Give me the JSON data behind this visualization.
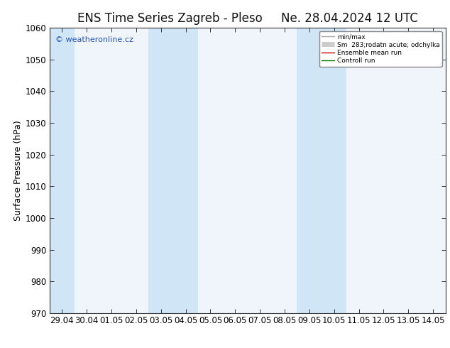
{
  "title": "ENS Time Series Zagreb - Pleso",
  "title2": "Ne. 28.04.2024 12 UTC",
  "xlabel_ticks": [
    "29.04",
    "30.04",
    "01.05",
    "02.05",
    "03.05",
    "04.05",
    "05.05",
    "06.05",
    "07.05",
    "08.05",
    "09.05",
    "10.05",
    "11.05",
    "12.05",
    "13.05",
    "14.05"
  ],
  "ylabel": "Surface Pressure (hPa)",
  "ylim": [
    970,
    1060
  ],
  "yticks": [
    970,
    980,
    990,
    1000,
    1010,
    1020,
    1030,
    1040,
    1050,
    1060
  ],
  "background_color": "#ffffff",
  "plot_bg_color": "#f0f5fb",
  "shaded_columns": [
    0,
    4,
    5,
    10,
    11
  ],
  "shaded_color": "#d0e5f5",
  "legend_items": [
    {
      "label": "min/max",
      "color": "#aaaaaa",
      "lw": 1.0
    },
    {
      "label": "Sm  283;rodatn acute; odchylka",
      "color": "#cccccc",
      "lw": 5
    },
    {
      "label": "Ensemble mean run",
      "color": "#cc0000",
      "lw": 1.0
    },
    {
      "label": "Controll run",
      "color": "#007700",
      "lw": 1.0
    }
  ],
  "watermark": "© weatheronline.cz",
  "watermark_color": "#2255bb",
  "border_color": "#333333",
  "tick_label_fontsize": 8.5,
  "axis_label_fontsize": 9,
  "title_fontsize": 12,
  "title_color": "#111111"
}
